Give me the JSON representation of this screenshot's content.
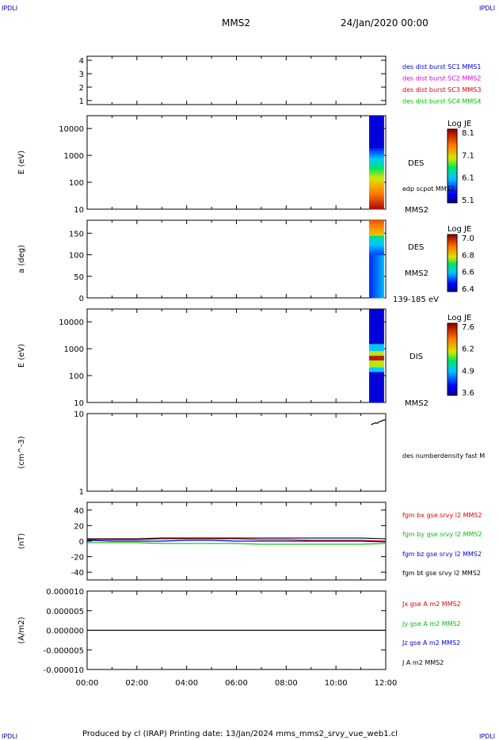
{
  "corner_label": "IPDLI",
  "header": {
    "spacecraft": "MMS2",
    "date": "24/Jan/2020 00:00"
  },
  "footer": "Produced by cl (IRAP)   Printing date: 13/Jan/2024   mms_mms2_srvy_vue_web1.cl",
  "colors": {
    "red": "#e00000",
    "green": "#00c000",
    "blue": "#0000dd",
    "magenta": "#dd00dd"
  },
  "chart_data": [
    {
      "type": "line",
      "title": "",
      "ylabel": "",
      "yticks": [
        "1",
        "2",
        "3",
        "4"
      ],
      "ylim": [
        0.7,
        4.3
      ],
      "legend": [
        {
          "label": "des dist burst SC1 MMS1",
          "color": "#0000dd"
        },
        {
          "label": "des dist burst SC2 MMS2",
          "color": "#dd00dd"
        },
        {
          "label": "des dist burst SC3 MMS3",
          "color": "#e00000"
        },
        {
          "label": "des dist burst SC4 MMS4",
          "color": "#00c000"
        }
      ]
    },
    {
      "type": "heatmap",
      "ylabel": "E (eV)",
      "yscale": "log",
      "ylim": [
        10,
        30000
      ],
      "yticks": [
        "10",
        "100",
        "1000",
        "10000"
      ],
      "data_x_range": [
        "11:20",
        "11:55"
      ],
      "colorbar": {
        "title": "Log JE",
        "ticks": [
          "8.1",
          "7.1",
          "6.1",
          "5.1"
        ],
        "range": [
          5.1,
          8.1
        ]
      },
      "labels": [
        "DES",
        "edp scpot MMS2",
        "MMS2"
      ]
    },
    {
      "type": "heatmap",
      "ylabel": "a (deg)",
      "ylim": [
        0,
        180
      ],
      "yticks": [
        "0",
        "50",
        "100",
        "150"
      ],
      "data_x_range": [
        "11:20",
        "11:55"
      ],
      "colorbar": {
        "title": "Log JE",
        "ticks": [
          "7.0",
          "6.8",
          "6.6",
          "6.4"
        ],
        "range": [
          6.4,
          7.0
        ]
      },
      "labels": [
        "DES",
        "MMS2",
        "139-185 eV"
      ]
    },
    {
      "type": "heatmap",
      "ylabel": "E (eV)",
      "yscale": "log",
      "ylim": [
        10,
        30000
      ],
      "yticks": [
        "10",
        "100",
        "1000",
        "10000"
      ],
      "data_x_range": [
        "11:20",
        "11:55"
      ],
      "colorbar": {
        "title": "Log JE",
        "ticks": [
          "7.6",
          "6.2",
          "4.9",
          "3.6"
        ],
        "range": [
          3.6,
          7.6
        ]
      },
      "labels": [
        "DIS",
        "MMS2"
      ]
    },
    {
      "type": "line",
      "ylabel": "(cm^-3)",
      "yscale": "log",
      "ylim": [
        1,
        10
      ],
      "yticks": [
        "1",
        "10"
      ],
      "series": [
        {
          "name": "des numberdensity fast M",
          "color": "#000000",
          "x": [
            "11:25",
            "11:30",
            "11:35",
            "11:40",
            "11:45",
            "11:50",
            "11:55",
            "12:00"
          ],
          "values": [
            7.2,
            7.4,
            7.6,
            7.5,
            7.9,
            8.0,
            8.3,
            8.2
          ]
        }
      ]
    },
    {
      "type": "line",
      "ylabel": "(nT)",
      "ylim": [
        -50,
        50
      ],
      "yticks": [
        "-40",
        "-20",
        "0",
        "20",
        "40"
      ],
      "series": [
        {
          "name": "fgm bx gse srvy l2 MMS2",
          "color": "#e00000",
          "x": [
            "00:00",
            "01:00",
            "02:00",
            "03:00",
            "04:00",
            "05:00",
            "06:00",
            "07:00",
            "08:00",
            "09:00",
            "10:00",
            "11:00",
            "12:00"
          ],
          "values": [
            2,
            2,
            2,
            3,
            3,
            3,
            3,
            2,
            2,
            1,
            1,
            1,
            0
          ]
        },
        {
          "name": "fgm by gse srvy l2 MMS2",
          "color": "#00c000",
          "x": [
            "00:00",
            "01:00",
            "02:00",
            "03:00",
            "04:00",
            "05:00",
            "06:00",
            "07:00",
            "08:00",
            "09:00",
            "10:00",
            "11:00",
            "12:00"
          ],
          "values": [
            -2,
            -2,
            -2,
            -3,
            -3,
            -3,
            -3,
            -4,
            -4,
            -4,
            -4,
            -4,
            -3
          ]
        },
        {
          "name": "fgm bz gse srvy l2 MMS2",
          "color": "#0000dd",
          "x": [
            "00:00",
            "01:00",
            "02:00",
            "03:00",
            "04:00",
            "05:00",
            "06:00",
            "07:00",
            "08:00",
            "09:00",
            "10:00",
            "11:00",
            "12:00"
          ],
          "values": [
            1,
            0,
            0,
            0,
            1,
            1,
            0,
            0,
            0,
            0,
            0,
            0,
            -1
          ]
        },
        {
          "name": "fgm bt gse srvy l2 MMS2",
          "color": "#000000",
          "x": [
            "00:00",
            "01:00",
            "02:00",
            "03:00",
            "04:00",
            "05:00",
            "06:00",
            "07:00",
            "08:00",
            "09:00",
            "10:00",
            "11:00",
            "12:00"
          ],
          "values": [
            3,
            3,
            3,
            4,
            4,
            4,
            4,
            4,
            4,
            4,
            4,
            4,
            3
          ]
        }
      ]
    },
    {
      "type": "line",
      "ylabel": "(A/m2)",
      "ylim": [
        -1e-05,
        1e-05
      ],
      "yticks": [
        "-0.000010",
        "-0.000005",
        "0.000000",
        "0.000005",
        "0.000010"
      ],
      "series": [
        {
          "name": "Jx gse A m2 MMS2",
          "color": "#e00000",
          "x": [],
          "values": []
        },
        {
          "name": "Jy gse A m2 MMS2",
          "color": "#00c000",
          "x": [],
          "values": []
        },
        {
          "name": "Jz gse A m2 MMS2",
          "color": "#0000dd",
          "x": [],
          "values": []
        },
        {
          "name": "J A m2 MMS2",
          "color": "#000000",
          "x": [
            "00:00",
            "03:00",
            "06:00",
            "09:00",
            "12:00"
          ],
          "values": [
            0,
            0,
            0,
            0,
            0
          ]
        }
      ],
      "xticks": [
        "00:00",
        "02:00",
        "04:00",
        "06:00",
        "08:00",
        "10:00",
        "12:00"
      ]
    }
  ]
}
